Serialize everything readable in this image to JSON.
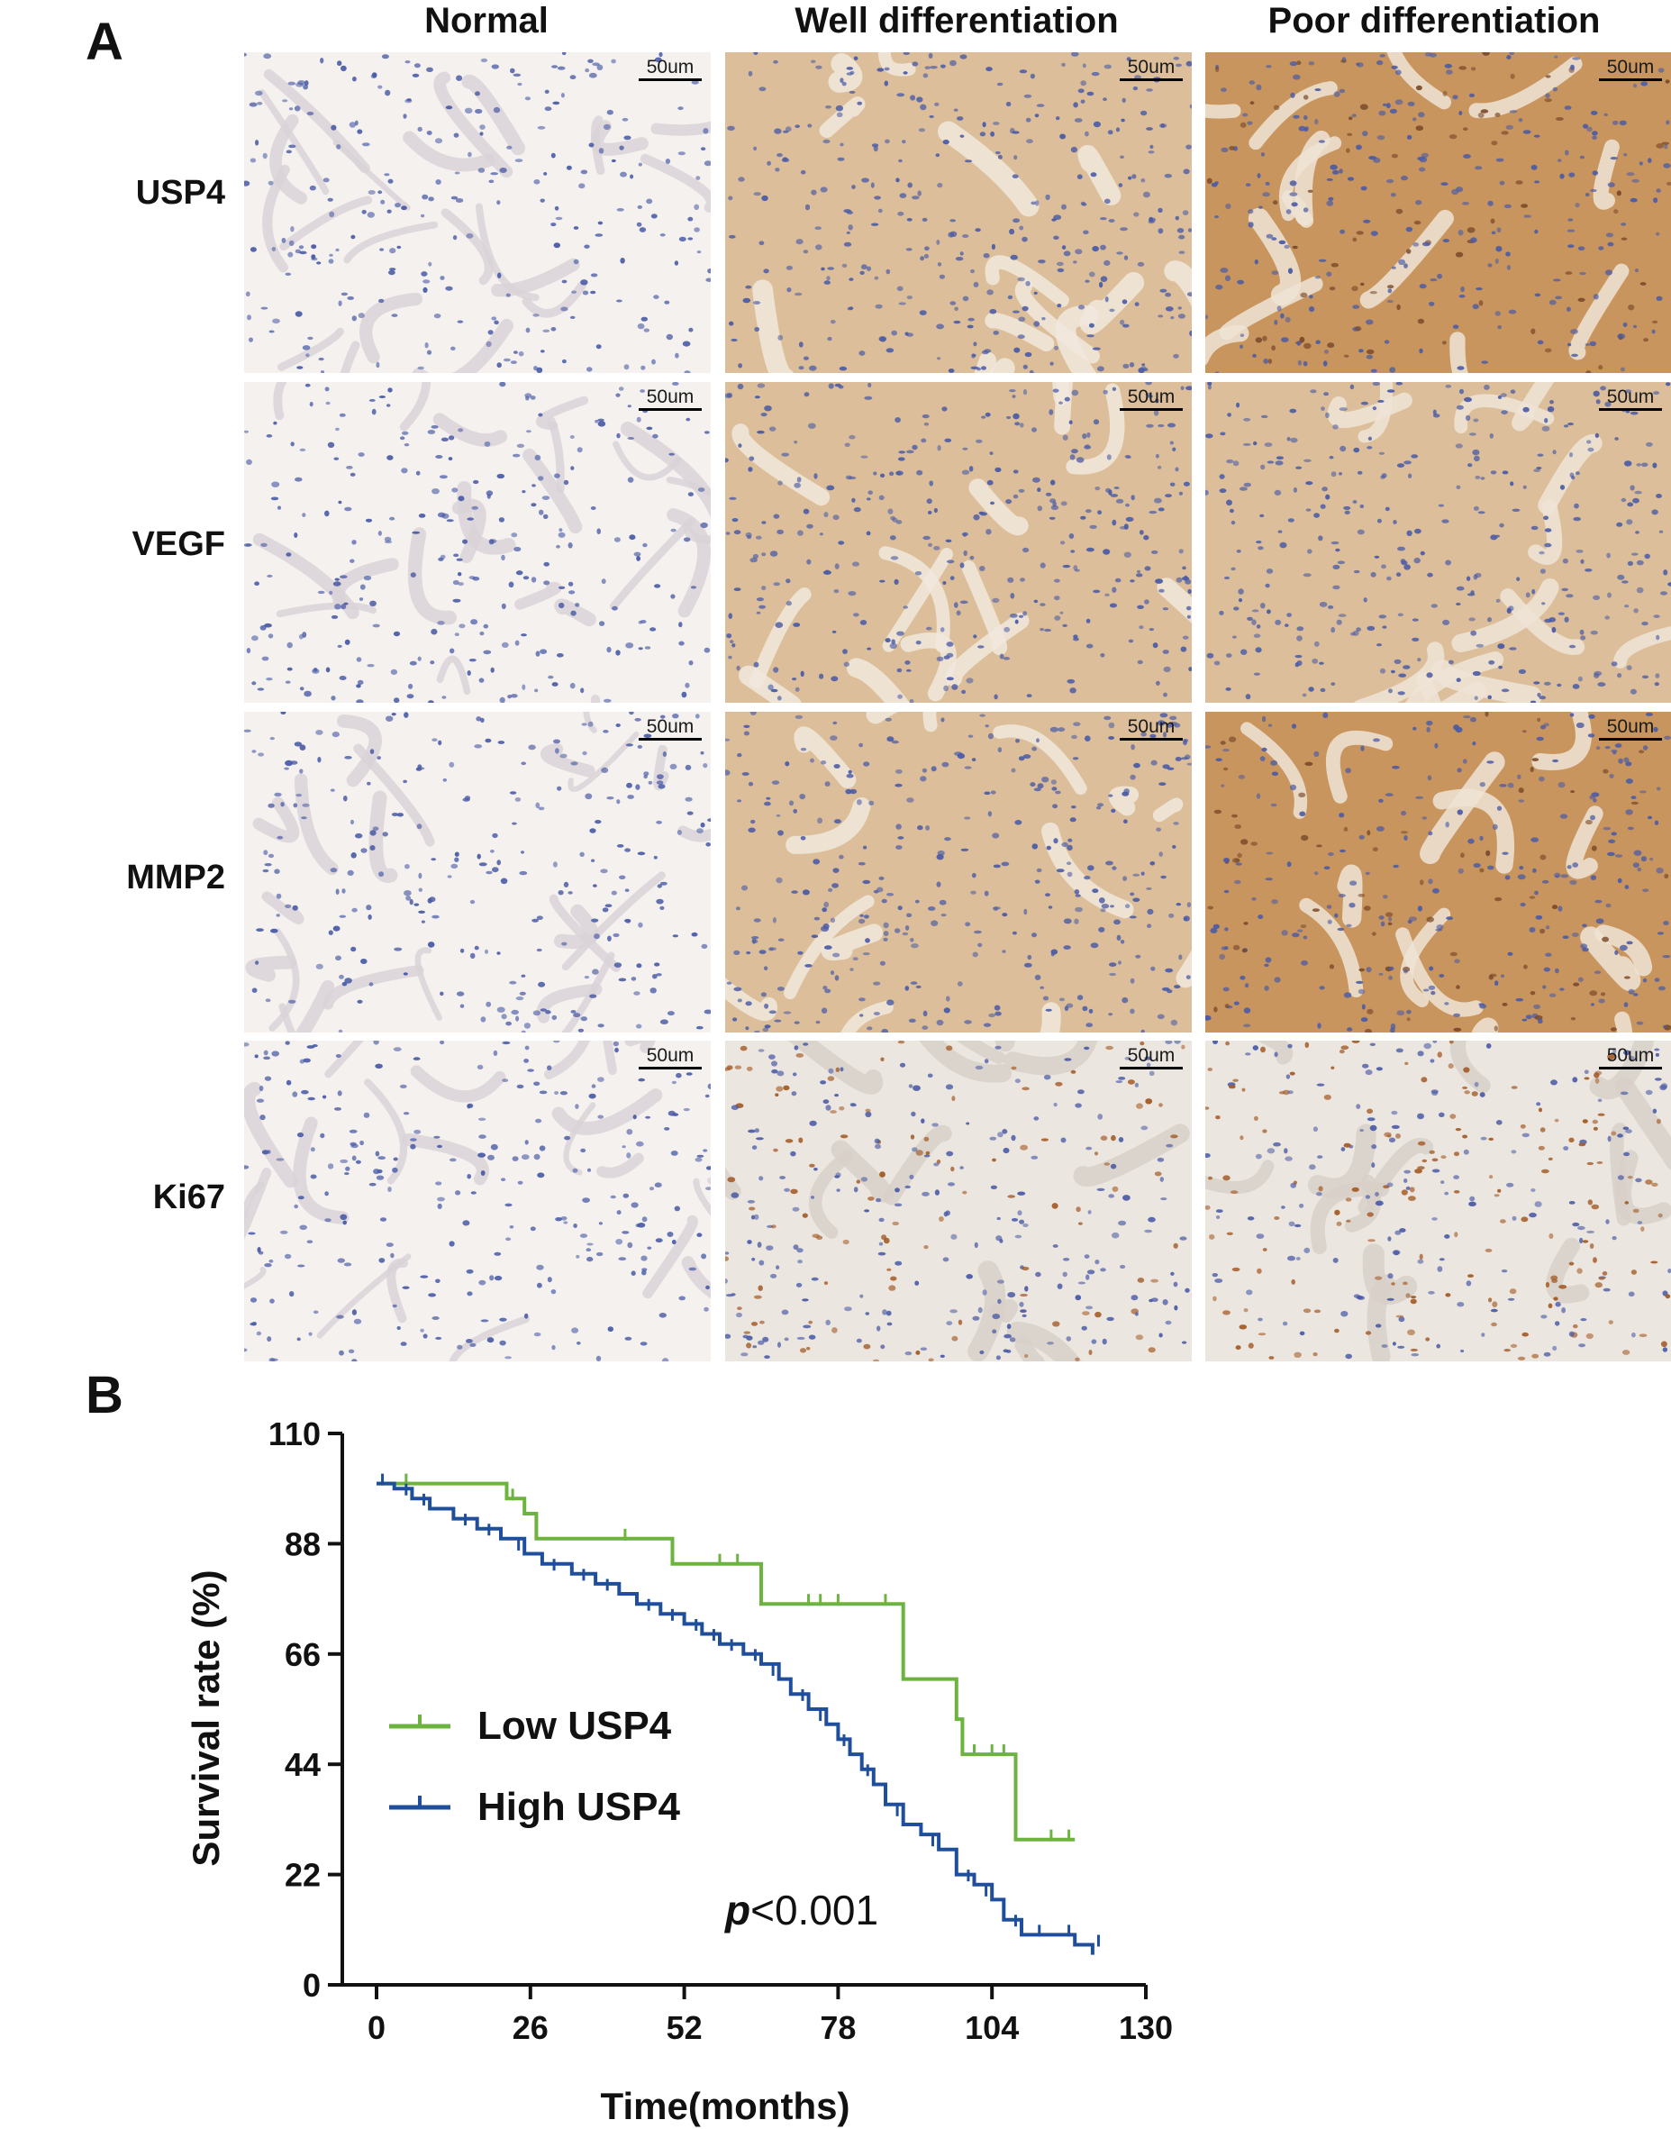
{
  "panel_a": {
    "letter": "A",
    "columns": [
      "Normal",
      "Well differentiation",
      "Poor differentiation"
    ],
    "rows": [
      "USP4",
      "VEGF",
      "MMP2",
      "Ki67"
    ],
    "scale_label": "50um",
    "stain_colors": {
      "background": "#f4f1ee",
      "hematoxylin": "#4a5ba6",
      "dab_light": "#dcbf9a",
      "dab_medium": "#c9955e",
      "dab_dark": "#a35a25"
    }
  },
  "panel_b": {
    "letter": "B",
    "p_prefix": "p",
    "p_rest": "<0.001"
  },
  "chart_data": {
    "type": "line",
    "subtype": "kaplan-meier",
    "title": "",
    "xlabel": "Time(months)",
    "ylabel": "Survival rate (%)",
    "xlim": [
      0,
      130
    ],
    "ylim": [
      0,
      110
    ],
    "xticks": [
      0,
      26,
      52,
      78,
      104,
      130
    ],
    "yticks": [
      0,
      22,
      44,
      66,
      88,
      110
    ],
    "grid": false,
    "legend_position": "left-middle",
    "annotation": "p<0.001",
    "series": [
      {
        "name": "Low USP4",
        "color": "#6db33f",
        "steps": [
          [
            0,
            100
          ],
          [
            21,
            100
          ],
          [
            22,
            97
          ],
          [
            25,
            94
          ],
          [
            27,
            89
          ],
          [
            48,
            89
          ],
          [
            50,
            84
          ],
          [
            63,
            84
          ],
          [
            65,
            76
          ],
          [
            88,
            76
          ],
          [
            89,
            61
          ],
          [
            96,
            61
          ],
          [
            98,
            53
          ],
          [
            99,
            46
          ],
          [
            107,
            46
          ],
          [
            108,
            29
          ],
          [
            118,
            29
          ]
        ],
        "censored": [
          [
            5,
            100
          ],
          [
            23,
            97
          ],
          [
            42,
            89
          ],
          [
            58,
            84
          ],
          [
            61,
            84
          ],
          [
            73,
            76
          ],
          [
            75,
            76
          ],
          [
            78,
            76
          ],
          [
            86,
            76
          ],
          [
            101,
            46
          ],
          [
            104,
            46
          ],
          [
            106,
            46
          ],
          [
            114,
            29
          ],
          [
            117,
            29
          ]
        ]
      },
      {
        "name": "High USP4",
        "color": "#1f4f9c",
        "steps": [
          [
            0,
            100
          ],
          [
            3,
            99
          ],
          [
            6,
            97
          ],
          [
            9,
            95
          ],
          [
            13,
            93
          ],
          [
            17,
            91
          ],
          [
            21,
            89
          ],
          [
            25,
            86
          ],
          [
            28,
            84
          ],
          [
            33,
            82
          ],
          [
            37,
            80
          ],
          [
            41,
            78
          ],
          [
            44,
            76
          ],
          [
            48,
            74
          ],
          [
            52,
            72
          ],
          [
            55,
            70
          ],
          [
            58,
            68
          ],
          [
            62,
            66
          ],
          [
            65,
            64
          ],
          [
            68,
            61
          ],
          [
            70,
            58
          ],
          [
            73,
            55
          ],
          [
            76,
            52
          ],
          [
            78,
            49
          ],
          [
            80,
            46
          ],
          [
            82,
            43
          ],
          [
            84,
            40
          ],
          [
            86,
            36
          ],
          [
            89,
            32
          ],
          [
            92,
            30
          ],
          [
            95,
            27
          ],
          [
            98,
            22
          ],
          [
            101,
            20
          ],
          [
            104,
            17
          ],
          [
            106,
            13
          ],
          [
            109,
            10
          ],
          [
            115,
            10
          ],
          [
            118,
            8
          ],
          [
            121,
            6
          ]
        ],
        "censored": [
          [
            1,
            100
          ],
          [
            5,
            98
          ],
          [
            8,
            96
          ],
          [
            15,
            92
          ],
          [
            19,
            90
          ],
          [
            24,
            87
          ],
          [
            30,
            83
          ],
          [
            35,
            81
          ],
          [
            39,
            79
          ],
          [
            46,
            75
          ],
          [
            50,
            73
          ],
          [
            54,
            71
          ],
          [
            57,
            69
          ],
          [
            60,
            67
          ],
          [
            64,
            65
          ],
          [
            67,
            62
          ],
          [
            72,
            57
          ],
          [
            75,
            53
          ],
          [
            79,
            48
          ],
          [
            83,
            42
          ],
          [
            88,
            34
          ],
          [
            94,
            28
          ],
          [
            100,
            21
          ],
          [
            103,
            18
          ],
          [
            108,
            12
          ],
          [
            112,
            10
          ],
          [
            117,
            10
          ],
          [
            122,
            8
          ]
        ]
      }
    ]
  }
}
